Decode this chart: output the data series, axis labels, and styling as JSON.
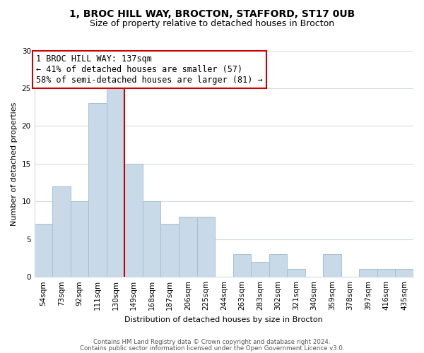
{
  "title": "1, BROC HILL WAY, BROCTON, STAFFORD, ST17 0UB",
  "subtitle": "Size of property relative to detached houses in Brocton",
  "xlabel": "Distribution of detached houses by size in Brocton",
  "ylabel": "Number of detached properties",
  "bar_labels": [
    "54sqm",
    "73sqm",
    "92sqm",
    "111sqm",
    "130sqm",
    "149sqm",
    "168sqm",
    "187sqm",
    "206sqm",
    "225sqm",
    "244sqm",
    "263sqm",
    "283sqm",
    "302sqm",
    "321sqm",
    "340sqm",
    "359sqm",
    "378sqm",
    "397sqm",
    "416sqm",
    "435sqm"
  ],
  "bar_values": [
    7,
    12,
    10,
    23,
    25,
    15,
    10,
    7,
    8,
    8,
    0,
    3,
    2,
    3,
    1,
    0,
    3,
    0,
    1,
    1,
    1
  ],
  "bar_color": "#c8d9e8",
  "bar_edge_color": "#a8c0d4",
  "highlight_line_color": "#cc0000",
  "annotation_line1": "1 BROC HILL WAY: 137sqm",
  "annotation_line2": "← 41% of detached houses are smaller (57)",
  "annotation_line3": "58% of semi-detached houses are larger (81) →",
  "annotation_box_edge_color": "#cc0000",
  "ylim": [
    0,
    30
  ],
  "yticks": [
    0,
    5,
    10,
    15,
    20,
    25,
    30
  ],
  "footer_line1": "Contains HM Land Registry data © Crown copyright and database right 2024.",
  "footer_line2": "Contains public sector information licensed under the Open Government Licence v3.0.",
  "background_color": "#ffffff",
  "grid_color": "#d0dce8",
  "title_fontsize": 10,
  "subtitle_fontsize": 9,
  "annotation_fontsize": 8.5,
  "axis_label_fontsize": 8,
  "tick_fontsize": 7.5,
  "footer_fontsize": 6.2
}
